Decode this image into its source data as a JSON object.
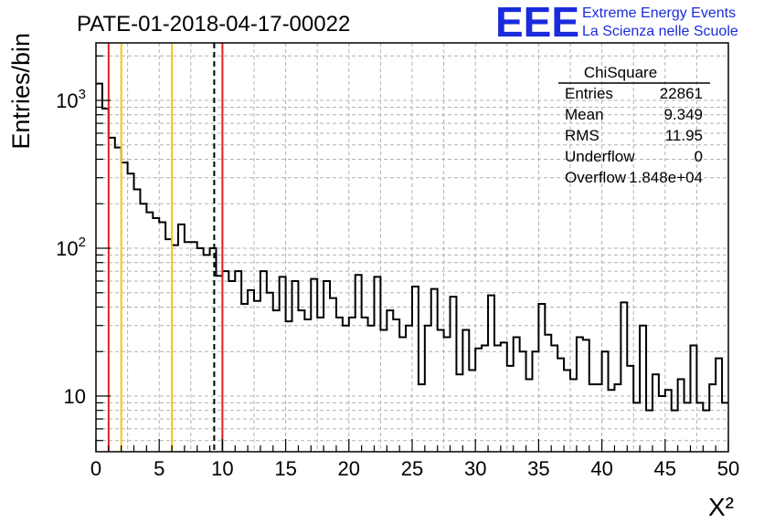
{
  "chart_data": {
    "type": "bar",
    "title": "PATE-01-2018-04-17-00022",
    "xlabel": "X²",
    "ylabel": "Entries/bin",
    "x_range": [
      0,
      50
    ],
    "y_range": [
      4.2,
      2450
    ],
    "y_scale": "log",
    "bin_width": 0.5,
    "grid": true,
    "x_ticks": [
      "0",
      "5",
      "10",
      "15",
      "20",
      "25",
      "30",
      "35",
      "40",
      "45",
      "50"
    ],
    "y_ticks": [
      {
        "value": 10,
        "base": "10",
        "exp": ""
      },
      {
        "value": 100,
        "base": "10",
        "exp": "2"
      },
      {
        "value": 1000,
        "base": "10",
        "exp": "3"
      }
    ],
    "values": [
      1300,
      880,
      560,
      480,
      380,
      320,
      250,
      200,
      175,
      160,
      150,
      115,
      105,
      145,
      110,
      110,
      100,
      90,
      100,
      65,
      70,
      60,
      70,
      42,
      52,
      44,
      70,
      50,
      38,
      64,
      32,
      60,
      38,
      33,
      62,
      34,
      60,
      46,
      34,
      30,
      34,
      66,
      34,
      30,
      64,
      28,
      38,
      33,
      25,
      30,
      55,
      12,
      30,
      53,
      28,
      25,
      47,
      14,
      28,
      15,
      21,
      22,
      48,
      22,
      23,
      16,
      25,
      20,
      13,
      20,
      42,
      26,
      22,
      18,
      15,
      13,
      25,
      24,
      12,
      12,
      20,
      11,
      12,
      43,
      16,
      9,
      30,
      8,
      14,
      10,
      11,
      8,
      13,
      9,
      22,
      9,
      8,
      12,
      18,
      9
    ],
    "vertical_lines": [
      {
        "x": 1,
        "color": "#e02020",
        "style": "solid"
      },
      {
        "x": 2,
        "color": "#f5c518",
        "style": "solid"
      },
      {
        "x": 6,
        "color": "#f5c518",
        "style": "solid"
      },
      {
        "x": 9.35,
        "color": "#000000",
        "style": "dashed"
      },
      {
        "x": 10,
        "color": "#e02020",
        "style": "solid"
      }
    ],
    "stats_box": {
      "title": "ChiSquare",
      "rows": [
        {
          "label": "Entries",
          "value": "22861"
        },
        {
          "label": "Mean",
          "value": "9.349"
        },
        {
          "label": "RMS",
          "value": "11.95"
        },
        {
          "label": "Underflow",
          "value": "0"
        },
        {
          "label": "Overflow",
          "value": "1.848e+04"
        }
      ]
    }
  },
  "logo": {
    "mark": "EEE",
    "line1": "Extreme Energy Events",
    "line2": "La Scienza nelle Scuole"
  }
}
